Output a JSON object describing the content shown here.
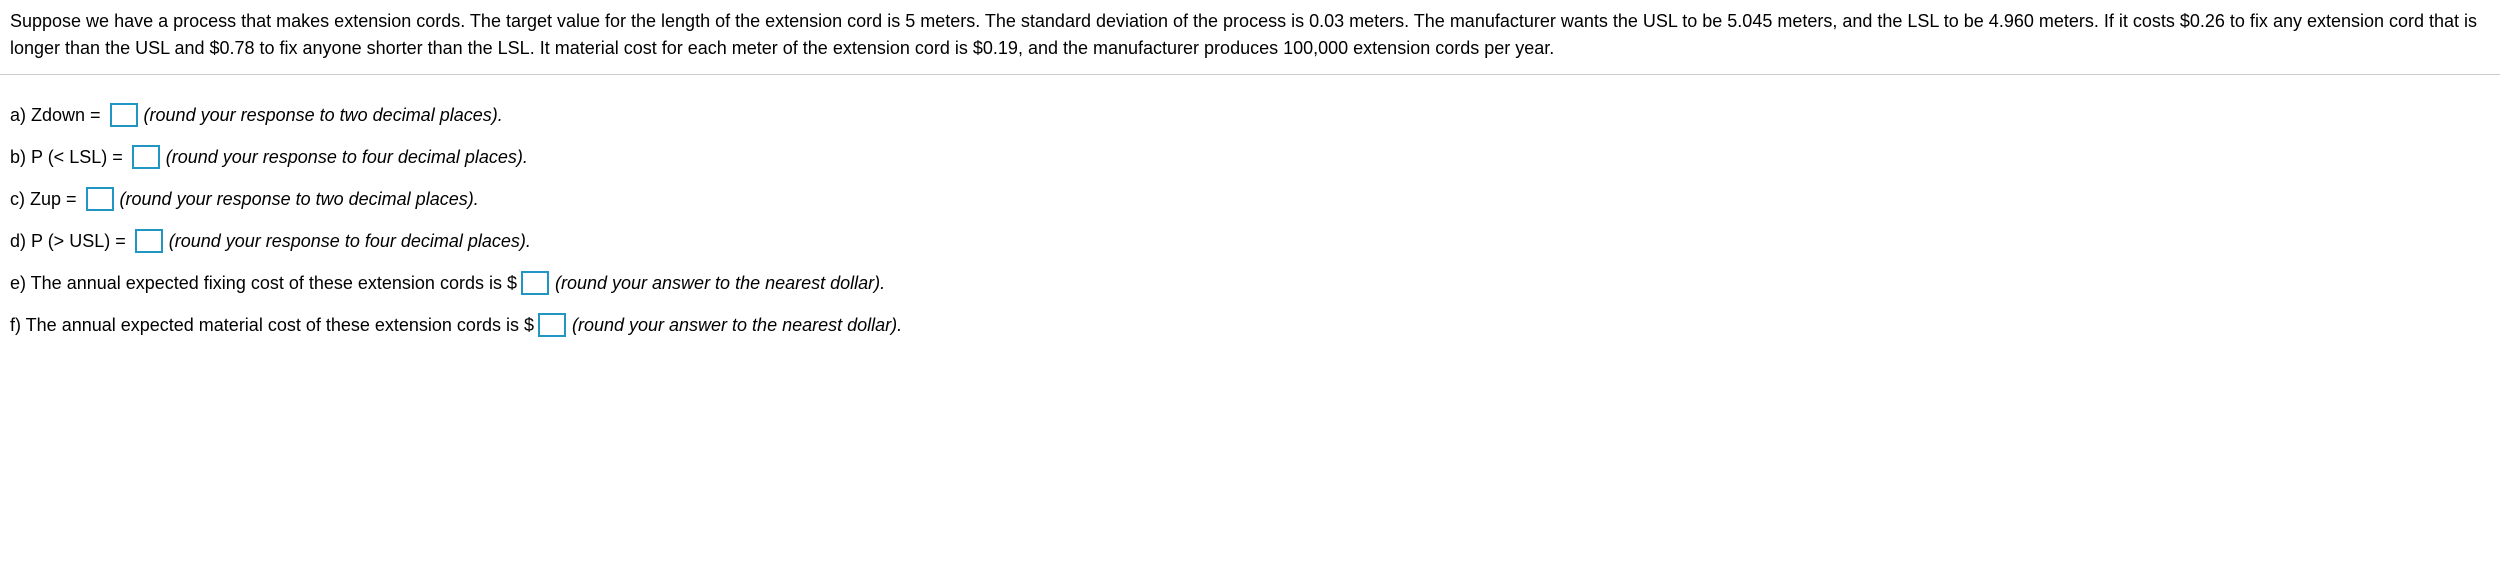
{
  "header": {
    "text": "Suppose we have a process that makes extension cords. The target value for the length of the extension cord is 5 meters. The standard deviation of the process is 0.03 meters. The manufacturer wants the USL to be 5.045 meters, and the LSL to be 4.960 meters. If it costs $0.26 to fix any extension cord that is longer than the USL and $0.78 to fix anyone shorter than the LSL. It material cost for each meter of the extension cord is $0.19, and the manufacturer produces 100,000 extension cords per year."
  },
  "questions": {
    "a": {
      "prefix": "a) Zdown = ",
      "instruction": "(round your response to two decimal places)."
    },
    "b": {
      "prefix": "b) P (< LSL) = ",
      "instruction": "(round your response to four decimal places)."
    },
    "c": {
      "prefix": "c) Zup = ",
      "instruction": "(round your response to two decimal places)."
    },
    "d": {
      "prefix": "d) P (> USL) = ",
      "instruction": "(round your response to four decimal places)."
    },
    "e": {
      "prefix": "e) The annual expected fixing cost of these extension cords is $",
      "instruction": "(round your answer to the nearest dollar)."
    },
    "f": {
      "prefix": "f) The annual expected material cost of these extension cords is $",
      "instruction": "(round your answer to the nearest dollar)."
    }
  },
  "style": {
    "input_border_color": "#2196c4",
    "divider_color": "#cccccc",
    "font_family": "Arial",
    "font_size_pt": 14
  }
}
